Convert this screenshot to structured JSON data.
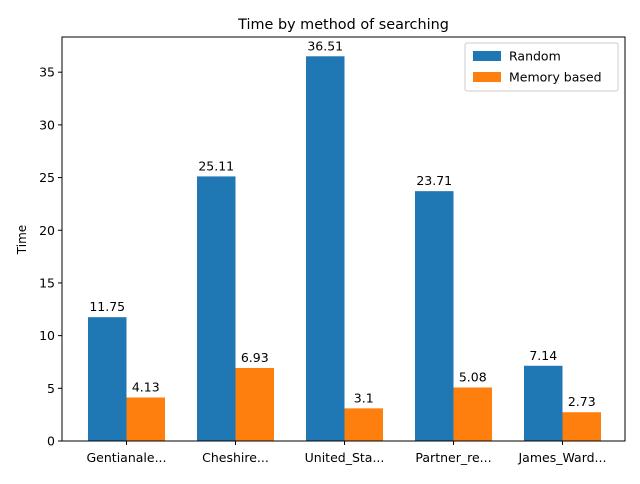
{
  "chart_data": {
    "type": "bar",
    "title": "Time by method of searching",
    "xlabel": "",
    "ylabel": "Time",
    "categories": [
      "Gentianale...",
      "Cheshire...",
      "United_Sta...",
      "Partner_re...",
      "James_Ward..."
    ],
    "series": [
      {
        "name": "Random",
        "color": "#1f77b4",
        "values": [
          11.75,
          25.11,
          36.51,
          23.71,
          7.14
        ],
        "labels": [
          "11.75",
          "25.11",
          "36.51",
          "23.71",
          "7.14"
        ]
      },
      {
        "name": "Memory based",
        "color": "#ff7f0e",
        "values": [
          4.13,
          6.93,
          3.1,
          5.08,
          2.73
        ],
        "labels": [
          "4.13",
          "6.93",
          "3.1",
          "5.08",
          "2.73"
        ]
      }
    ],
    "ylim": [
      0,
      38.34
    ],
    "yticks": [
      0,
      5,
      10,
      15,
      20,
      25,
      30,
      35
    ],
    "grid": false,
    "legend": "top-right"
  }
}
